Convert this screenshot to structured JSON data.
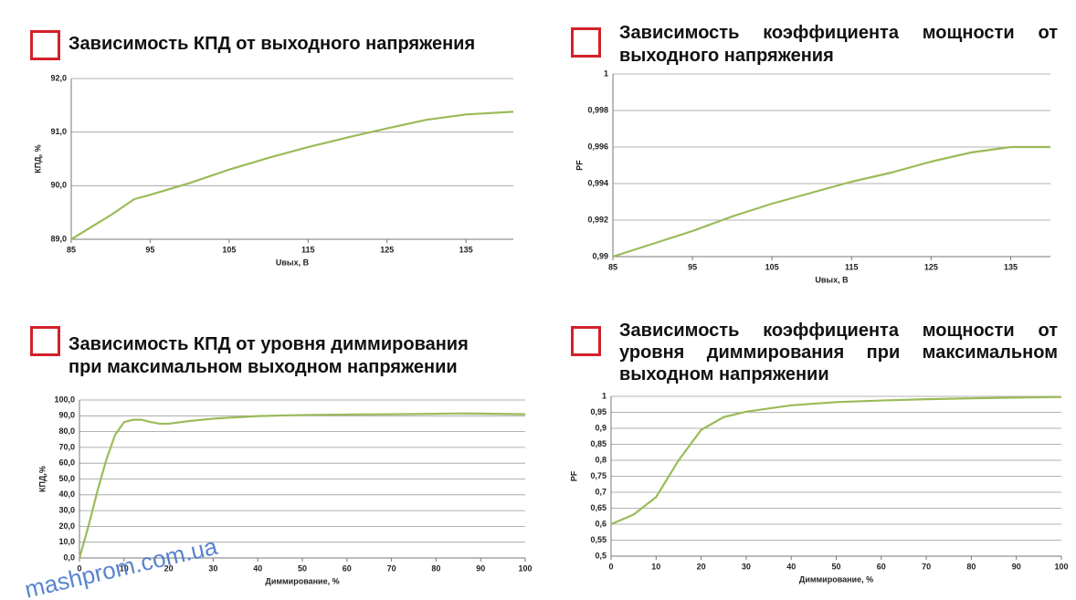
{
  "chart_data": [
    {
      "type": "line",
      "title": "Зависимость КПД от выходного напряжения",
      "ylabel": "КПД, %",
      "xlabel": "Uвых, В",
      "x": [
        85,
        90,
        93,
        95,
        100,
        105,
        110,
        115,
        120,
        125,
        130,
        135,
        141
      ],
      "values": [
        89.0,
        89.45,
        89.75,
        89.83,
        90.05,
        90.3,
        90.52,
        90.72,
        90.9,
        91.07,
        91.23,
        91.33,
        91.38
      ],
      "color": "#9bbb59",
      "xlim": [
        85,
        141
      ],
      "xticks": [
        85,
        95,
        105,
        115,
        125,
        135
      ],
      "ylim": [
        89,
        92
      ],
      "yticks": [
        {
          "value": 89,
          "label": "89,0"
        },
        {
          "value": 90,
          "label": "90,0"
        },
        {
          "value": 91,
          "label": "91,0"
        },
        {
          "value": 92,
          "label": "92,0"
        }
      ],
      "grid": true
    },
    {
      "type": "line",
      "title": "Зависимость коэффициента мощности от выходного напряжения",
      "ylabel": "PF",
      "xlabel": "Uвых, В",
      "x": [
        85,
        90,
        95,
        100,
        105,
        110,
        115,
        120,
        125,
        130,
        135,
        140
      ],
      "values": [
        0.99,
        0.9907,
        0.9914,
        0.9922,
        0.9929,
        0.9935,
        0.9941,
        0.9946,
        0.9952,
        0.9957,
        0.996,
        0.996
      ],
      "color": "#9bbb59",
      "xlim": [
        85,
        140
      ],
      "xticks": [
        85,
        95,
        105,
        115,
        125,
        135
      ],
      "ylim": [
        0.99,
        1
      ],
      "yticks": [
        {
          "value": 0.99,
          "label": "0,99"
        },
        {
          "value": 0.992,
          "label": "0,992"
        },
        {
          "value": 0.994,
          "label": "0,994"
        },
        {
          "value": 0.996,
          "label": "0,996"
        },
        {
          "value": 0.998,
          "label": "0,998"
        },
        1
      ],
      "grid": true
    },
    {
      "type": "line",
      "title": "Зависимость КПД от уровня диммирования при максимальном выходном напряжении",
      "ylabel": "КПД,%",
      "xlabel": "Диммирование, %",
      "x": [
        0,
        2,
        4,
        6,
        8,
        10,
        12,
        14,
        16,
        18,
        20,
        25,
        30,
        40,
        50,
        60,
        70,
        80,
        85,
        90,
        100
      ],
      "values": [
        0,
        20,
        42,
        62,
        78,
        86,
        87.5,
        87.5,
        86,
        85,
        85,
        86.8,
        88.2,
        89.8,
        90.5,
        90.8,
        91,
        91.3,
        91.5,
        91.4,
        91
      ],
      "color": "#9bbb59",
      "xlim": [
        0,
        100
      ],
      "xticks": [
        0,
        10,
        20,
        30,
        40,
        50,
        60,
        70,
        80,
        90,
        100
      ],
      "ylim": [
        0,
        100
      ],
      "yticks": [
        {
          "value": 0,
          "label": "0,0"
        },
        {
          "value": 10,
          "label": "10,0"
        },
        {
          "value": 20,
          "label": "20,0"
        },
        {
          "value": 30,
          "label": "30,0"
        },
        {
          "value": 40,
          "label": "40,0"
        },
        {
          "value": 50,
          "label": "50,0"
        },
        {
          "value": 60,
          "label": "60,0"
        },
        {
          "value": 70,
          "label": "70,0"
        },
        {
          "value": 80,
          "label": "80,0"
        },
        {
          "value": 90,
          "label": "90,0"
        },
        {
          "value": 100,
          "label": "100,0"
        }
      ],
      "grid": true
    },
    {
      "type": "line",
      "title": "Зависимость коэффициента мощности от уровня диммирования при максимальном выходном напряжении",
      "ylabel": "PF",
      "xlabel": "Диммирование, %",
      "x": [
        0,
        5,
        10,
        15,
        20,
        25,
        30,
        40,
        50,
        60,
        70,
        80,
        90,
        100
      ],
      "values": [
        0.6,
        0.63,
        0.685,
        0.8,
        0.895,
        0.935,
        0.952,
        0.972,
        0.982,
        0.987,
        0.991,
        0.994,
        0.996,
        0.998
      ],
      "color": "#9bbb59",
      "xlim": [
        0,
        100
      ],
      "xticks": [
        0,
        10,
        20,
        30,
        40,
        50,
        60,
        70,
        80,
        90,
        100
      ],
      "ylim": [
        0.5,
        1
      ],
      "yticks": [
        {
          "value": 0.5,
          "label": "0,5"
        },
        {
          "value": 0.55,
          "label": "0,55"
        },
        {
          "value": 0.6,
          "label": "0,6"
        },
        {
          "value": 0.65,
          "label": "0,65"
        },
        {
          "value": 0.7,
          "label": "0,7"
        },
        {
          "value": 0.75,
          "label": "0,75"
        },
        {
          "value": 0.8,
          "label": "0,8"
        },
        {
          "value": 0.85,
          "label": "0,85"
        },
        {
          "value": 0.9,
          "label": "0,9"
        },
        {
          "value": 0.95,
          "label": "0,95"
        },
        1
      ],
      "grid": true
    }
  ],
  "watermark": "mashprom.com.ua"
}
